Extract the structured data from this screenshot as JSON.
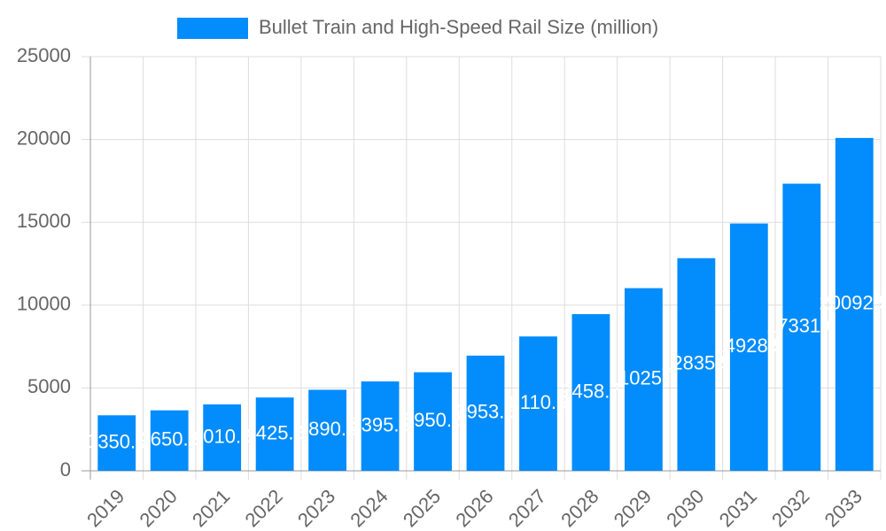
{
  "chart_data": {
    "type": "bar",
    "legend": "Bullet Train and High-Speed Rail Size (million)",
    "color": "#038cfc",
    "categories": [
      "2019",
      "2020",
      "2021",
      "2022",
      "2023",
      "2024",
      "2025",
      "2026",
      "2027",
      "2028",
      "2029",
      "2030",
      "2031",
      "2032",
      "2033"
    ],
    "values": [
      3350.5,
      3650.5,
      4010.5,
      4425.5,
      4890.5,
      5395.5,
      5950.5,
      6953.5,
      8110.5,
      9458.7,
      11025.7,
      12835.5,
      14928.5,
      17331.6,
      20092.5
    ],
    "ylim": [
      0,
      25000
    ],
    "yticks": [
      0,
      5000,
      10000,
      15000,
      20000,
      25000
    ],
    "grid": true
  }
}
